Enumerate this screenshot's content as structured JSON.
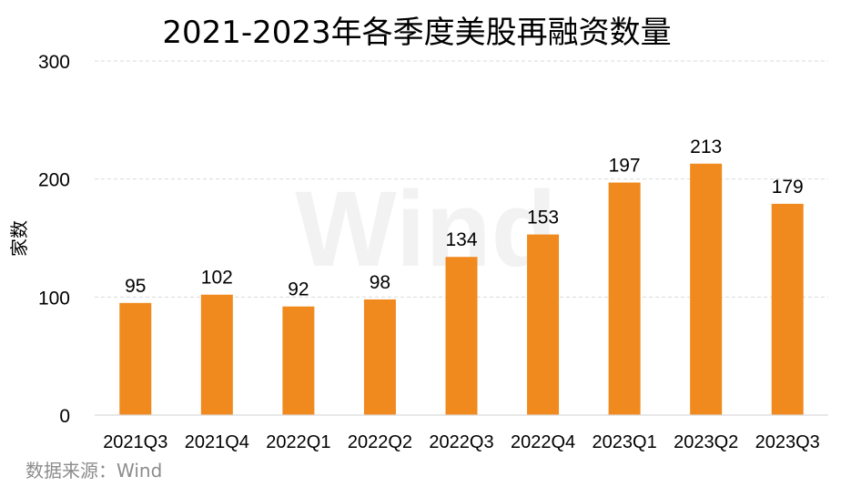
{
  "chart_data": {
    "type": "bar",
    "title": "2021-2023年各季度美股再融资数量",
    "xlabel": "",
    "ylabel": "家数",
    "categories": [
      "2021Q3",
      "2021Q4",
      "2022Q1",
      "2022Q2",
      "2022Q3",
      "2022Q4",
      "2023Q1",
      "2023Q2",
      "2023Q3"
    ],
    "values": [
      95,
      102,
      92,
      98,
      134,
      153,
      197,
      213,
      179
    ],
    "value_labels": [
      "95",
      "102",
      "92",
      "98",
      "134",
      "153",
      "197",
      "213",
      "179"
    ],
    "ylim": [
      0,
      300
    ],
    "yticks": [
      "0",
      "100",
      "200",
      "300"
    ],
    "grid": "horizontal dashed",
    "legend": "none",
    "bar_color": "#F08A1E",
    "grid_color": "#D9D9D9",
    "watermark": "Wind",
    "source": "数据来源：Wind"
  }
}
